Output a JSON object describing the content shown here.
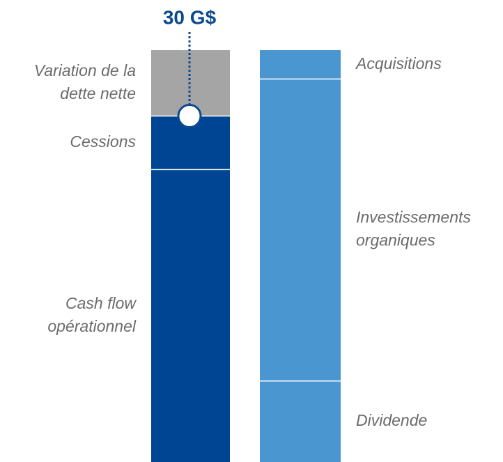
{
  "chart_data": {
    "type": "stacked_bar",
    "annotation": "30 G$",
    "bars": [
      {
        "label_side": "left",
        "segments": [
          {
            "name": [
              "Cash flow",
              "opérationnel"
            ],
            "value": 21.3,
            "color": "#004494"
          },
          {
            "name": [
              "Cessions"
            ],
            "value": 3.9,
            "color": "#004494"
          },
          {
            "name": [
              "Variation de la",
              "dette nette"
            ],
            "value": 4.8,
            "color": "#a5a5a5"
          }
        ]
      },
      {
        "label_side": "right",
        "segments": [
          {
            "name": [
              "Dividende"
            ],
            "value": 5.9,
            "color": "#4a96d0"
          },
          {
            "name": [
              "Investissements",
              "organiques"
            ],
            "value": 22.0,
            "color": "#4a96d0"
          },
          {
            "name": [
              "Acquisitions"
            ],
            "value": 2.1,
            "color": "#4a96d0"
          }
        ]
      }
    ]
  }
}
